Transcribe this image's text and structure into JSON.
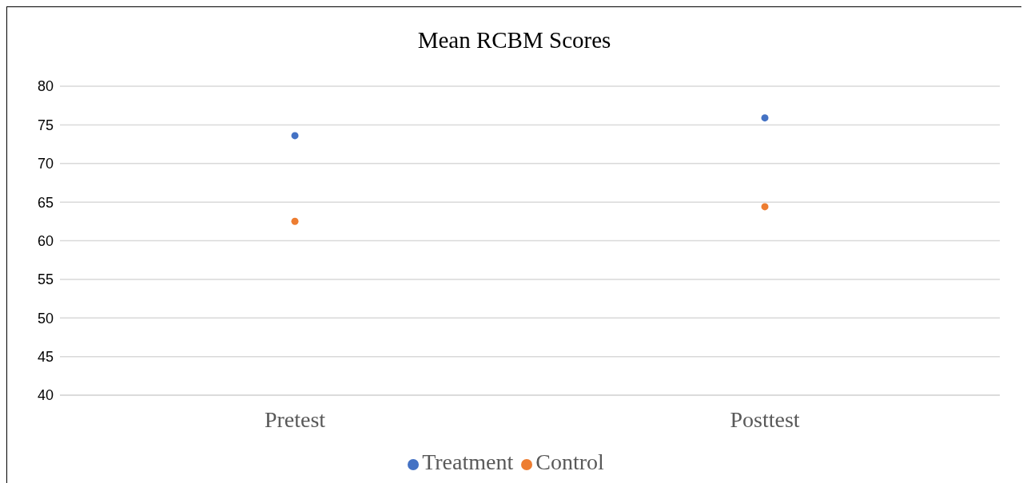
{
  "chart_data": {
    "type": "scatter",
    "title": "Mean RCBM Scores",
    "categories": [
      "Pretest",
      "Posttest"
    ],
    "series": [
      {
        "name": "Treatment",
        "color": "#4472c4",
        "values": [
          73.6,
          75.9
        ]
      },
      {
        "name": "Control",
        "color": "#ed7d31",
        "values": [
          62.5,
          64.4
        ]
      }
    ],
    "ylim": [
      40,
      80
    ],
    "yticks": [
      40,
      45,
      50,
      55,
      60,
      65,
      70,
      75,
      80
    ],
    "grid": "y",
    "legend": "bottom",
    "marker": "circle"
  }
}
